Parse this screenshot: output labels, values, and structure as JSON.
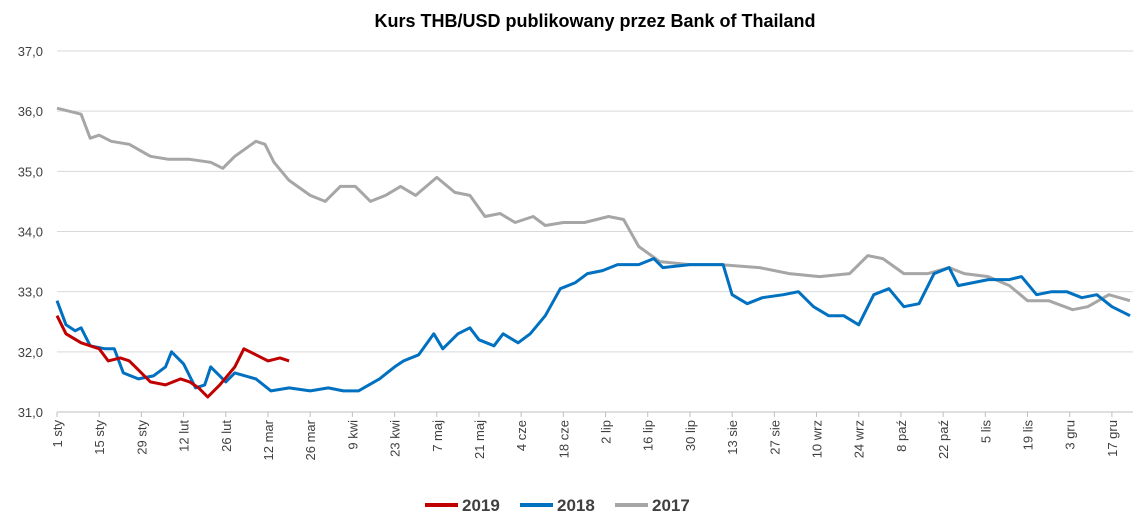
{
  "chart_data": {
    "type": "line",
    "title": "Kurs THB/USD publikowany przez Bank of Thailand",
    "xlim": [
      0,
      357
    ],
    "xticks": [
      {
        "value": 0,
        "label": "1 sty"
      },
      {
        "value": 14,
        "label": "15 sty"
      },
      {
        "value": 28,
        "label": "29 sty"
      },
      {
        "value": 42,
        "label": "12 lut"
      },
      {
        "value": 56,
        "label": "26 lut"
      },
      {
        "value": 70,
        "label": "12 mar"
      },
      {
        "value": 84,
        "label": "26 mar"
      },
      {
        "value": 98,
        "label": "9 kwi"
      },
      {
        "value": 112,
        "label": "23 kwi"
      },
      {
        "value": 126,
        "label": "7 maj"
      },
      {
        "value": 140,
        "label": "21 maj"
      },
      {
        "value": 154,
        "label": "4 cze"
      },
      {
        "value": 168,
        "label": "18 cze"
      },
      {
        "value": 182,
        "label": "2 lip"
      },
      {
        "value": 196,
        "label": "16 lip"
      },
      {
        "value": 210,
        "label": "30 lip"
      },
      {
        "value": 224,
        "label": "13 sie"
      },
      {
        "value": 238,
        "label": "27 sie"
      },
      {
        "value": 252,
        "label": "10 wrz"
      },
      {
        "value": 266,
        "label": "24 wrz"
      },
      {
        "value": 280,
        "label": "8 paź"
      },
      {
        "value": 294,
        "label": "22 paź"
      },
      {
        "value": 308,
        "label": "5 lis"
      },
      {
        "value": 322,
        "label": "19 lis"
      },
      {
        "value": 336,
        "label": "3 gru"
      },
      {
        "value": 350,
        "label": "17 gru"
      }
    ],
    "ylim": [
      31,
      37
    ],
    "yticks": [
      {
        "value": 31,
        "label": "31,0"
      },
      {
        "value": 32,
        "label": "32,0"
      },
      {
        "value": 33,
        "label": "33,0"
      },
      {
        "value": 34,
        "label": "34,0"
      },
      {
        "value": 35,
        "label": "35,0"
      },
      {
        "value": 36,
        "label": "36,0"
      },
      {
        "value": 37,
        "label": "37,0"
      }
    ],
    "grid": true,
    "series": [
      {
        "name": "2019",
        "color": "#c00000",
        "x": [
          0,
          3,
          8,
          11,
          14,
          17,
          21,
          24,
          27,
          31,
          36,
          41,
          44,
          47,
          50,
          54,
          59,
          62,
          66,
          70,
          74,
          77
        ],
        "values": [
          32.6,
          32.3,
          32.15,
          32.1,
          32.05,
          31.85,
          31.9,
          31.85,
          31.7,
          31.5,
          31.45,
          31.55,
          31.5,
          31.4,
          31.25,
          31.45,
          31.75,
          32.05,
          31.95,
          31.85,
          31.9,
          31.85
        ]
      },
      {
        "name": "2018",
        "color": "#0070c0",
        "x": [
          0,
          3,
          6,
          8,
          11,
          16,
          19,
          22,
          27,
          32,
          36,
          38,
          42,
          46,
          49,
          51,
          56,
          59,
          66,
          71,
          77,
          84,
          90,
          95,
          100,
          107,
          112,
          115,
          120,
          125,
          128,
          133,
          137,
          140,
          145,
          148,
          153,
          157,
          162,
          167,
          172,
          176,
          181,
          186,
          193,
          198,
          201,
          210,
          216,
          221,
          224,
          229,
          234,
          241,
          246,
          251,
          256,
          261,
          266,
          271,
          276,
          281,
          286,
          291,
          296,
          299,
          304,
          309,
          316,
          320,
          325,
          330,
          335,
          340,
          345,
          350,
          356
        ],
        "values": [
          32.85,
          32.45,
          32.35,
          32.4,
          32.1,
          32.05,
          32.05,
          31.65,
          31.55,
          31.6,
          31.75,
          32.0,
          31.8,
          31.4,
          31.45,
          31.75,
          31.5,
          31.65,
          31.55,
          31.35,
          31.4,
          31.35,
          31.4,
          31.35,
          31.35,
          31.55,
          31.75,
          31.85,
          31.95,
          32.3,
          32.05,
          32.3,
          32.4,
          32.2,
          32.1,
          32.3,
          32.15,
          32.3,
          32.6,
          33.05,
          33.15,
          33.3,
          33.35,
          33.45,
          33.45,
          33.55,
          33.4,
          33.45,
          33.45,
          33.45,
          32.95,
          32.8,
          32.9,
          32.95,
          33.0,
          32.75,
          32.6,
          32.6,
          32.45,
          32.95,
          33.05,
          32.75,
          32.8,
          33.3,
          33.4,
          33.1,
          33.15,
          33.2,
          33.2,
          33.25,
          32.95,
          33.0,
          33.0,
          32.9,
          32.95,
          32.75,
          32.6
        ]
      },
      {
        "name": "2017",
        "color": "#a6a6a6",
        "x": [
          0,
          8,
          11,
          14,
          18,
          24,
          31,
          37,
          44,
          51,
          55,
          59,
          66,
          69,
          72,
          77,
          84,
          89,
          94,
          99,
          104,
          109,
          114,
          119,
          126,
          132,
          137,
          142,
          147,
          152,
          158,
          162,
          168,
          175,
          183,
          188,
          193,
          200,
          210,
          220,
          233,
          243,
          253,
          263,
          269,
          274,
          281,
          289,
          296,
          301,
          309,
          316,
          322,
          329,
          337,
          342,
          349,
          356
        ],
        "values": [
          36.05,
          35.95,
          35.55,
          35.6,
          35.5,
          35.45,
          35.25,
          35.2,
          35.2,
          35.15,
          35.05,
          35.25,
          35.5,
          35.45,
          35.15,
          34.85,
          34.6,
          34.5,
          34.75,
          34.75,
          34.5,
          34.6,
          34.75,
          34.6,
          34.9,
          34.65,
          34.6,
          34.25,
          34.3,
          34.15,
          34.25,
          34.1,
          34.15,
          34.15,
          34.25,
          34.2,
          33.75,
          33.5,
          33.45,
          33.45,
          33.4,
          33.3,
          33.25,
          33.3,
          33.6,
          33.55,
          33.3,
          33.3,
          33.4,
          33.3,
          33.25,
          33.1,
          32.85,
          32.85,
          32.7,
          32.75,
          32.95,
          32.85
        ]
      }
    ]
  }
}
